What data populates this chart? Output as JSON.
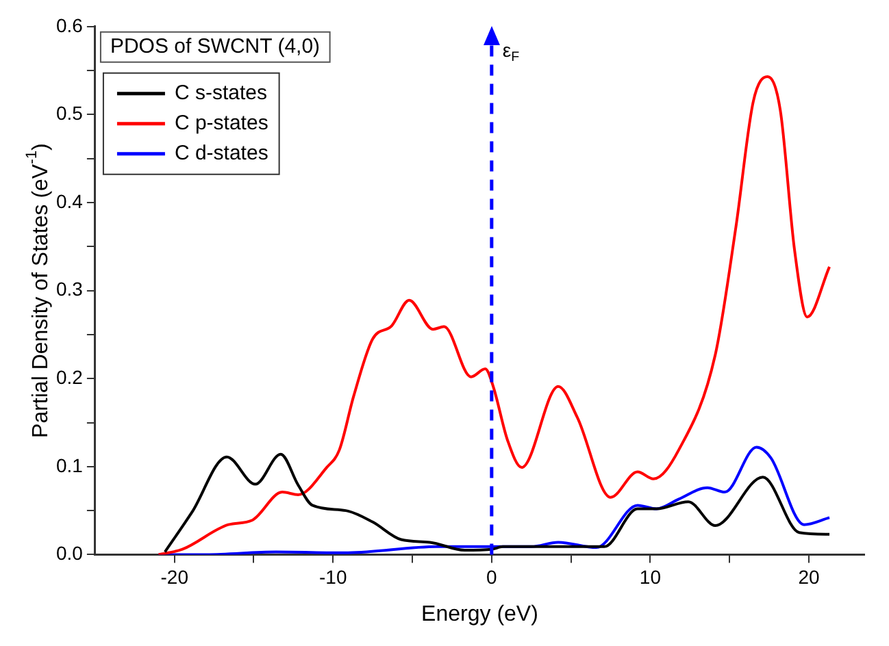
{
  "chart_data": {
    "type": "line",
    "title": "PDOS of SWCNT (4,0)",
    "xlabel": "Energy (eV)",
    "ylabel": "Partial Density of States (eV$^{-1}$)",
    "xlim": [
      -25,
      23.5
    ],
    "ylim": [
      0,
      0.6
    ],
    "xticks": [
      -20,
      {
        "value": -15,
        "label": null
      },
      -10,
      {
        "value": -5,
        "label": null
      },
      0,
      {
        "value": 5,
        "label": null
      },
      10,
      {
        "value": 15,
        "label": null
      },
      20
    ],
    "yticks": [
      {
        "value": 0,
        "label": "0.0"
      },
      {
        "value": 0.05,
        "label": null
      },
      0.1,
      {
        "value": 0.15,
        "label": null
      },
      0.2,
      {
        "value": 0.25,
        "label": null
      },
      0.3,
      {
        "value": 0.35,
        "label": null
      },
      0.4,
      {
        "value": 0.45,
        "label": null
      },
      0.5,
      {
        "value": 0.55,
        "label": null
      },
      0.6
    ],
    "grid": false,
    "legend": "top left",
    "marker": "none",
    "line_style": "solid",
    "ref_lines": [
      {
        "axis": "x",
        "value": 0,
        "label": "ε$_{F}$",
        "color": "#0000ff",
        "line_style": "dashed"
      }
    ],
    "series": [
      {
        "name": "C s-states",
        "color": "#000000",
        "x": [
          -20.6,
          -18.9,
          -16.7,
          -14.9,
          -13.3,
          -12.2,
          -11.3,
          -9.2,
          -7.5,
          -5.7,
          -3.9,
          -1.7,
          0,
          0.7,
          7.1,
          9.2,
          10.4,
          12.4,
          14.1,
          17.1,
          19.4,
          21.3
        ],
        "values": [
          0.003,
          0.048,
          0.111,
          0.08,
          0.114,
          0.079,
          0.056,
          0.05,
          0.037,
          0.017,
          0.014,
          0.005,
          0.006,
          0.009,
          0.009,
          0.052,
          0.052,
          0.06,
          0.033,
          0.088,
          0.025,
          0.023
        ]
      },
      {
        "name": "C p-states",
        "color": "#ff0000",
        "x": [
          -21,
          -19.5,
          -16.6,
          -15.1,
          -13.2,
          -12.2,
          -10.4,
          -9.6,
          -8.7,
          -7.5,
          -6.3,
          -5.2,
          -3.7,
          -3.0,
          -1.3,
          -0.4,
          0.1,
          1.0,
          1.9,
          4.2,
          5.4,
          7.5,
          9.2,
          10.2,
          11.8,
          14.1,
          15.4,
          16.5,
          17.4,
          18.2,
          19.1,
          19.9,
          21.3
        ],
        "values": [
          0,
          0.006,
          0.034,
          0.039,
          0.071,
          0.068,
          0.099,
          0.119,
          0.18,
          0.245,
          0.26,
          0.289,
          0.256,
          0.259,
          0.202,
          0.211,
          0.191,
          0.13,
          0.099,
          0.191,
          0.156,
          0.065,
          0.094,
          0.086,
          0.119,
          0.227,
          0.372,
          0.515,
          0.543,
          0.505,
          0.346,
          0.27,
          0.327
        ]
      },
      {
        "name": "C d-states",
        "color": "#0000ff",
        "x": [
          -21,
          -18,
          -13.6,
          -9.2,
          -3.4,
          2.5,
          4.2,
          6.6,
          9.2,
          10.4,
          11.8,
          13.6,
          14.7,
          16.7,
          17.6,
          19.7,
          21.3
        ],
        "values": [
          0,
          0,
          0.003,
          0.002,
          0.009,
          0.009,
          0.014,
          0.008,
          0.056,
          0.052,
          0.063,
          0.076,
          0.071,
          0.122,
          0.11,
          0.034,
          0.042
        ]
      }
    ]
  }
}
